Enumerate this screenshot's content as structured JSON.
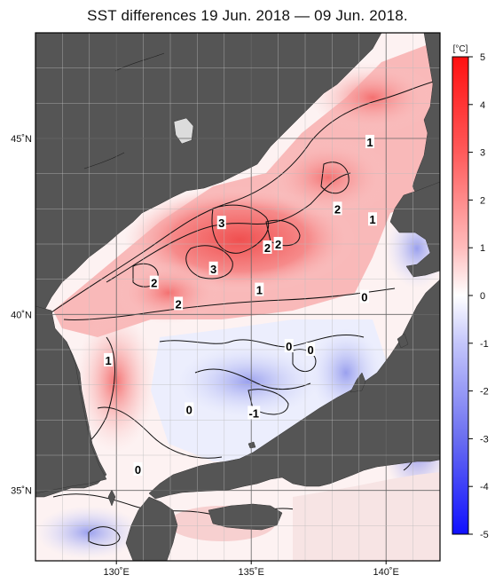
{
  "title": "SST differences 19 Jun. 2018 — 09 Jun. 2018.",
  "map": {
    "lon_range": [
      127,
      142
    ],
    "lat_range": [
      33,
      48
    ],
    "lon_ticks": [
      {
        "value": 130,
        "label": "130˚E"
      },
      {
        "value": 135,
        "label": "135˚E"
      },
      {
        "value": 140,
        "label": "140˚E"
      }
    ],
    "lat_ticks": [
      {
        "value": 45,
        "label": "45˚N"
      },
      {
        "value": 40,
        "label": "40˚N"
      },
      {
        "value": 35,
        "label": "35˚N"
      }
    ],
    "land_color": "#555555",
    "grid": true,
    "contour_labels": [
      {
        "text": "1",
        "lon": 139.4,
        "lat": 44.9
      },
      {
        "text": "3",
        "lon": 133.9,
        "lat": 42.6
      },
      {
        "text": "2",
        "lon": 138.2,
        "lat": 43.0
      },
      {
        "text": "1",
        "lon": 139.5,
        "lat": 42.7
      },
      {
        "text": "2",
        "lon": 135.6,
        "lat": 41.9
      },
      {
        "text": "2",
        "lon": 136.0,
        "lat": 42.0
      },
      {
        "text": "3",
        "lon": 133.6,
        "lat": 41.3
      },
      {
        "text": "2",
        "lon": 131.4,
        "lat": 40.9
      },
      {
        "text": "2",
        "lon": 132.3,
        "lat": 40.3
      },
      {
        "text": "1",
        "lon": 135.3,
        "lat": 40.7
      },
      {
        "text": "0",
        "lon": 139.2,
        "lat": 40.5
      },
      {
        "text": "0",
        "lon": 136.4,
        "lat": 39.1
      },
      {
        "text": "0",
        "lon": 137.2,
        "lat": 39.0
      },
      {
        "text": "1",
        "lon": 129.7,
        "lat": 38.7
      },
      {
        "text": "0",
        "lon": 132.7,
        "lat": 37.3
      },
      {
        "text": "-1",
        "lon": 135.1,
        "lat": 37.2
      },
      {
        "text": "0",
        "lon": 130.8,
        "lat": 35.6
      }
    ]
  },
  "colorbar": {
    "unit": "[°C]",
    "min": -5,
    "max": 5,
    "ticks": [
      5,
      4,
      3,
      2,
      1,
      0,
      -1,
      -2,
      -3,
      -4,
      -5
    ],
    "tick_labels": [
      "5",
      "4",
      "3",
      "2",
      "1",
      "0",
      "-1",
      "-2",
      "-3",
      "-4",
      "-5"
    ],
    "colors": {
      "positive": "#ff1a1a",
      "zero": "#ffffff",
      "negative": "#1a1aff"
    }
  }
}
